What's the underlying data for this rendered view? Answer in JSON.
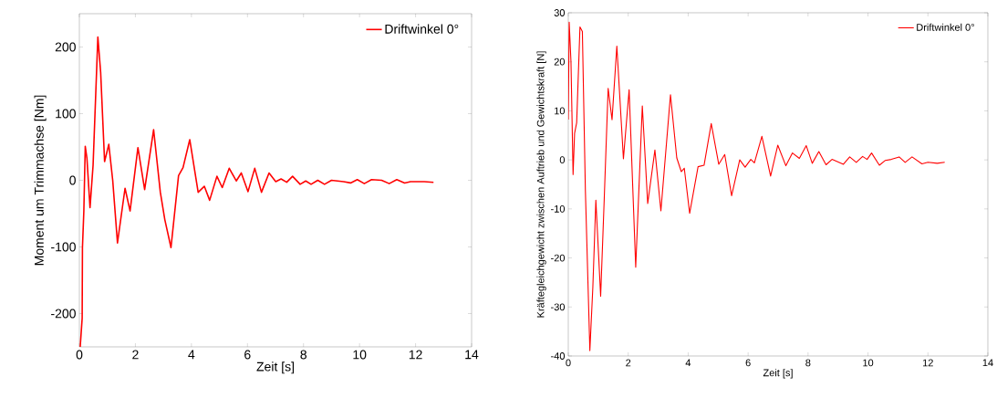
{
  "chart_data": [
    {
      "type": "line",
      "xlabel": "Zeit [s]",
      "ylabel": "Moment um Trimmachse [Nm]",
      "legend": "top right",
      "xlim": [
        0,
        14
      ],
      "ylim": [
        -250,
        250
      ],
      "xticks": [
        0,
        2,
        4,
        6,
        8,
        10,
        12,
        14
      ],
      "yticks": [
        -200,
        -100,
        0,
        100,
        200
      ],
      "series": [
        {
          "name": "Driftwinkel 0°",
          "color": "#ff0000",
          "x": [
            0.03,
            0.1,
            0.11,
            0.16,
            0.21,
            0.27,
            0.38,
            0.49,
            0.66,
            0.76,
            0.9,
            1.05,
            1.19,
            1.36,
            1.63,
            1.81,
            2.09,
            2.33,
            2.65,
            2.89,
            3.05,
            3.27,
            3.54,
            3.7,
            3.94,
            4.24,
            4.46,
            4.65,
            4.91,
            5.1,
            5.35,
            5.6,
            5.78,
            6.02,
            6.26,
            6.5,
            6.77,
            7.01,
            7.2,
            7.4,
            7.61,
            7.88,
            8.08,
            8.27,
            8.51,
            8.75,
            9.0,
            9.43,
            9.68,
            9.92,
            10.17,
            10.43,
            10.79,
            11.06,
            11.33,
            11.61,
            11.82,
            12.31,
            12.64
          ],
          "values": [
            -250,
            -207,
            -101,
            -46,
            51,
            33,
            -41,
            23,
            215,
            162,
            28,
            54,
            0,
            -94,
            -12,
            -46,
            49,
            -14,
            76,
            -18,
            -59,
            -101,
            7,
            19,
            61,
            -18,
            -9,
            -30,
            6,
            -11,
            18,
            -1,
            11,
            -17,
            18,
            -18,
            11,
            -2,
            2,
            -3,
            6,
            -6,
            -1,
            -6,
            0,
            -6,
            0,
            -2,
            -4,
            1,
            -5,
            1,
            0,
            -5,
            1,
            -4,
            -2,
            -2,
            -3
          ]
        }
      ]
    },
    {
      "type": "line",
      "xlabel": "Zeit [s]",
      "ylabel": "Kräftegleichgewicht zwischen Auftrieb und Gewichtskraft [N]",
      "legend": "top right",
      "xlim": [
        0,
        14
      ],
      "ylim": [
        -40,
        30
      ],
      "xticks": [
        0,
        2,
        4,
        6,
        8,
        10,
        12,
        14
      ],
      "yticks": [
        -40,
        -30,
        -20,
        -10,
        0,
        10,
        20,
        30
      ],
      "series": [
        {
          "name": "Driftwinkel 0°",
          "color": "#ff0000",
          "x": [
            0,
            0.03,
            0.09,
            0.16,
            0.21,
            0.28,
            0.39,
            0.47,
            0.57,
            0.72,
            0.82,
            0.92,
            1.08,
            1.2,
            1.33,
            1.46,
            1.62,
            1.84,
            2.03,
            2.25,
            2.47,
            2.65,
            2.89,
            3.09,
            3.41,
            3.62,
            3.77,
            3.87,
            4.05,
            4.33,
            4.53,
            4.77,
            5.02,
            5.22,
            5.45,
            5.72,
            5.9,
            6.09,
            6.21,
            6.46,
            6.75,
            6.99,
            7.26,
            7.48,
            7.71,
            7.94,
            8.14,
            8.36,
            8.6,
            8.8,
            9.18,
            9.39,
            9.61,
            9.82,
            9.97,
            10.12,
            10.38,
            10.58,
            10.78,
            11.04,
            11.24,
            11.47,
            11.8,
            12.0,
            12.31,
            12.56
          ],
          "values": [
            8.2,
            28.1,
            20,
            -3,
            5.4,
            7.6,
            27.1,
            26.2,
            -6.1,
            -38.9,
            -25.9,
            -8.2,
            -27.8,
            -7.9,
            14.6,
            8.2,
            23.2,
            0.2,
            14.3,
            -21.9,
            11,
            -8.9,
            2,
            -10.4,
            13.3,
            0.4,
            -2.4,
            -1.7,
            -10.9,
            -1.4,
            -1.1,
            7.4,
            -0.9,
            1.1,
            -7.3,
            0,
            -1.5,
            0.1,
            -0.6,
            4.8,
            -3.3,
            3,
            -1.2,
            1.4,
            0.3,
            2.9,
            -0.7,
            1.7,
            -1,
            0.1,
            -0.9,
            0.6,
            -0.5,
            0.7,
            0.1,
            1.4,
            -1.1,
            -0.1,
            0.1,
            0.6,
            -0.5,
            0.6,
            -0.8,
            -0.5,
            -0.7,
            -0.5
          ]
        }
      ]
    }
  ]
}
